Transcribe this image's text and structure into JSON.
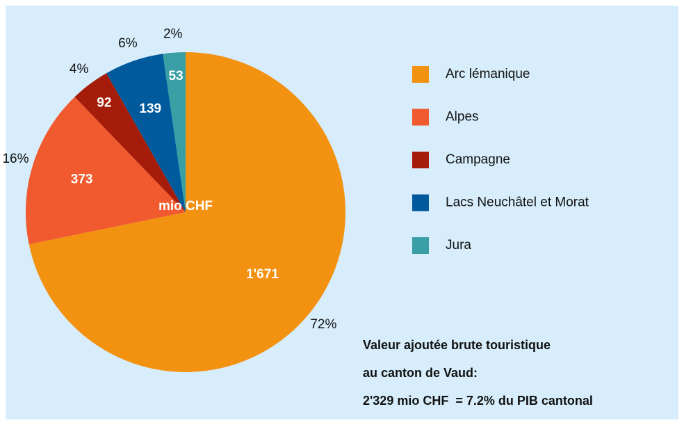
{
  "chart_data": {
    "type": "pie",
    "categories": [
      "Arc lémanique",
      "Alpes",
      "Campagne",
      "Lacs Neuchâtel et Morat",
      "Jura"
    ],
    "values": [
      1671,
      373,
      92,
      139,
      53
    ],
    "value_labels": [
      "1'671",
      "373",
      "92",
      "139",
      "53"
    ],
    "percentages": [
      {
        "value": 72,
        "label": "72%"
      },
      {
        "value": 16,
        "label": "16%"
      },
      {
        "value": 4,
        "label": "4%"
      },
      {
        "value": 6,
        "label": "6%"
      },
      {
        "value": 2,
        "label": "2%"
      }
    ],
    "colors": [
      "#f39110",
      "#f15a2e",
      "#a51c0a",
      "#005a9c",
      "#3a9ea5"
    ],
    "center_label": "mio CHF",
    "annotation": [
      "Valeur ajoutée brute touristique",
      "au canton de Vaud:",
      "2'329 mio CHF  = 7.2% du PIB cantonal"
    ],
    "legend": "right"
  }
}
